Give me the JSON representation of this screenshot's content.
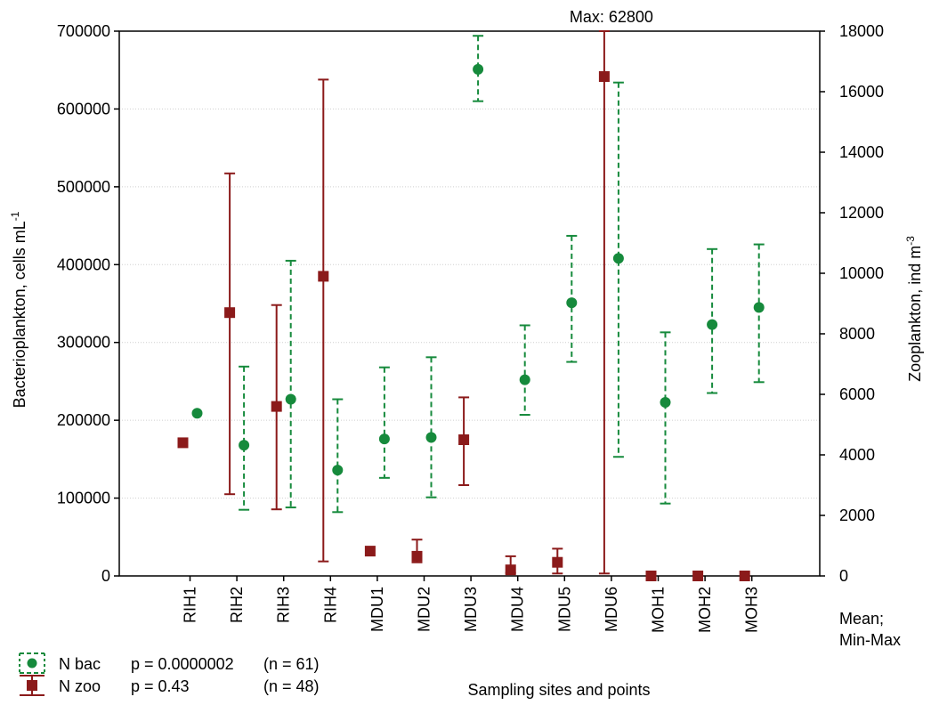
{
  "chart_data": {
    "type": "scatter",
    "categories": [
      "RIH1",
      "RIH2",
      "RIH3",
      "RIH4",
      "MDU1",
      "MDU2",
      "MDU3",
      "MDU4",
      "MDU5",
      "MDU6",
      "MOH1",
      "MOH2",
      "MOH3"
    ],
    "xlabel": "Sampling sites and points",
    "ylabel_left_main": "Bacterioplankton, cells mL",
    "ylabel_left_sup": "-1",
    "ylabel_right_main": "Zooplankton, ind m",
    "ylabel_right_sup": "-3",
    "ylim_left": [
      0,
      700000
    ],
    "ylim_right": [
      0,
      18000
    ],
    "left_ticks": [
      "0",
      "100000",
      "200000",
      "300000",
      "400000",
      "500000",
      "600000",
      "700000"
    ],
    "right_ticks": [
      "0",
      "2000",
      "4000",
      "6000",
      "8000",
      "10000",
      "12000",
      "14000",
      "16000",
      "18000"
    ],
    "grid": true,
    "annotation": "Max: 62800",
    "stat_note_line1": "Mean;",
    "stat_note_line2": "Min-Max",
    "colors": {
      "bac": "#168a3c",
      "zoo": "#8b1a1a",
      "grid": "#cfcfcf"
    },
    "series": [
      {
        "name": "N bac",
        "axis": "left",
        "marker": "circle",
        "line": "dashed",
        "mean": [
          209000,
          168000,
          227000,
          136000,
          176000,
          178000,
          651000,
          252000,
          351000,
          408000,
          223000,
          323000,
          345000
        ],
        "min": [
          null,
          85000,
          88000,
          82000,
          126000,
          101000,
          610000,
          207000,
          275000,
          153000,
          93000,
          235000,
          249000
        ],
        "max": [
          null,
          269000,
          405000,
          227000,
          268000,
          281000,
          694000,
          322000,
          437000,
          634000,
          313000,
          420000,
          426000
        ]
      },
      {
        "name": "N zoo",
        "axis": "right",
        "marker": "square",
        "line": "solid",
        "mean": [
          4400,
          8700,
          5600,
          9900,
          820,
          650,
          4500,
          200,
          450,
          16500,
          0,
          0,
          0
        ],
        "min": [
          null,
          2700,
          2200,
          480,
          null,
          450,
          3000,
          100,
          80,
          80,
          null,
          null,
          null
        ],
        "max": [
          null,
          13300,
          8950,
          16400,
          null,
          1200,
          5900,
          650,
          900,
          18000,
          null,
          null,
          null
        ]
      }
    ]
  },
  "legend": {
    "bac_label": "N bac",
    "bac_p": "p = 0.0000002",
    "bac_n": "(n = 61)",
    "zoo_label": "N zoo",
    "zoo_p": "p = 0.43",
    "zoo_n": "(n = 48)"
  }
}
